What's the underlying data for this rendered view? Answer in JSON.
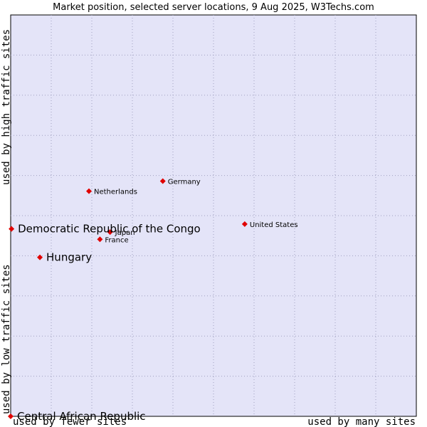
{
  "chart_data": {
    "type": "scatter",
    "title": "Market position, selected server locations, 9 Aug 2025, W3Techs.com",
    "xlabel_low": "used by fewer sites",
    "xlabel_high": "used by many sites",
    "ylabel_low": "used by low traffic sites",
    "ylabel_high": "used by high traffic sites",
    "xlim": [
      0,
      100
    ],
    "ylim": [
      0,
      100
    ],
    "grid": true,
    "colors": {
      "plot_bg": "#e4e4f8",
      "point": "#e00000",
      "grid": "#a0a0c0"
    },
    "points": [
      {
        "name": "United States",
        "x": 57.7,
        "y": 47.9,
        "emphasis": false
      },
      {
        "name": "Germany",
        "x": 37.5,
        "y": 58.6,
        "emphasis": false
      },
      {
        "name": "Netherlands",
        "x": 19.3,
        "y": 56.1,
        "emphasis": false
      },
      {
        "name": "Japan",
        "x": 24.5,
        "y": 45.9,
        "emphasis": false
      },
      {
        "name": "France",
        "x": 22.0,
        "y": 44.1,
        "emphasis": false
      },
      {
        "name": "Democratic Republic of the Congo",
        "x": 0.2,
        "y": 46.7,
        "emphasis": true
      },
      {
        "name": "Hungary",
        "x": 7.2,
        "y": 39.6,
        "emphasis": true
      },
      {
        "name": "Central African Republic",
        "x": 0.0,
        "y": 0.0,
        "emphasis": true
      }
    ]
  }
}
